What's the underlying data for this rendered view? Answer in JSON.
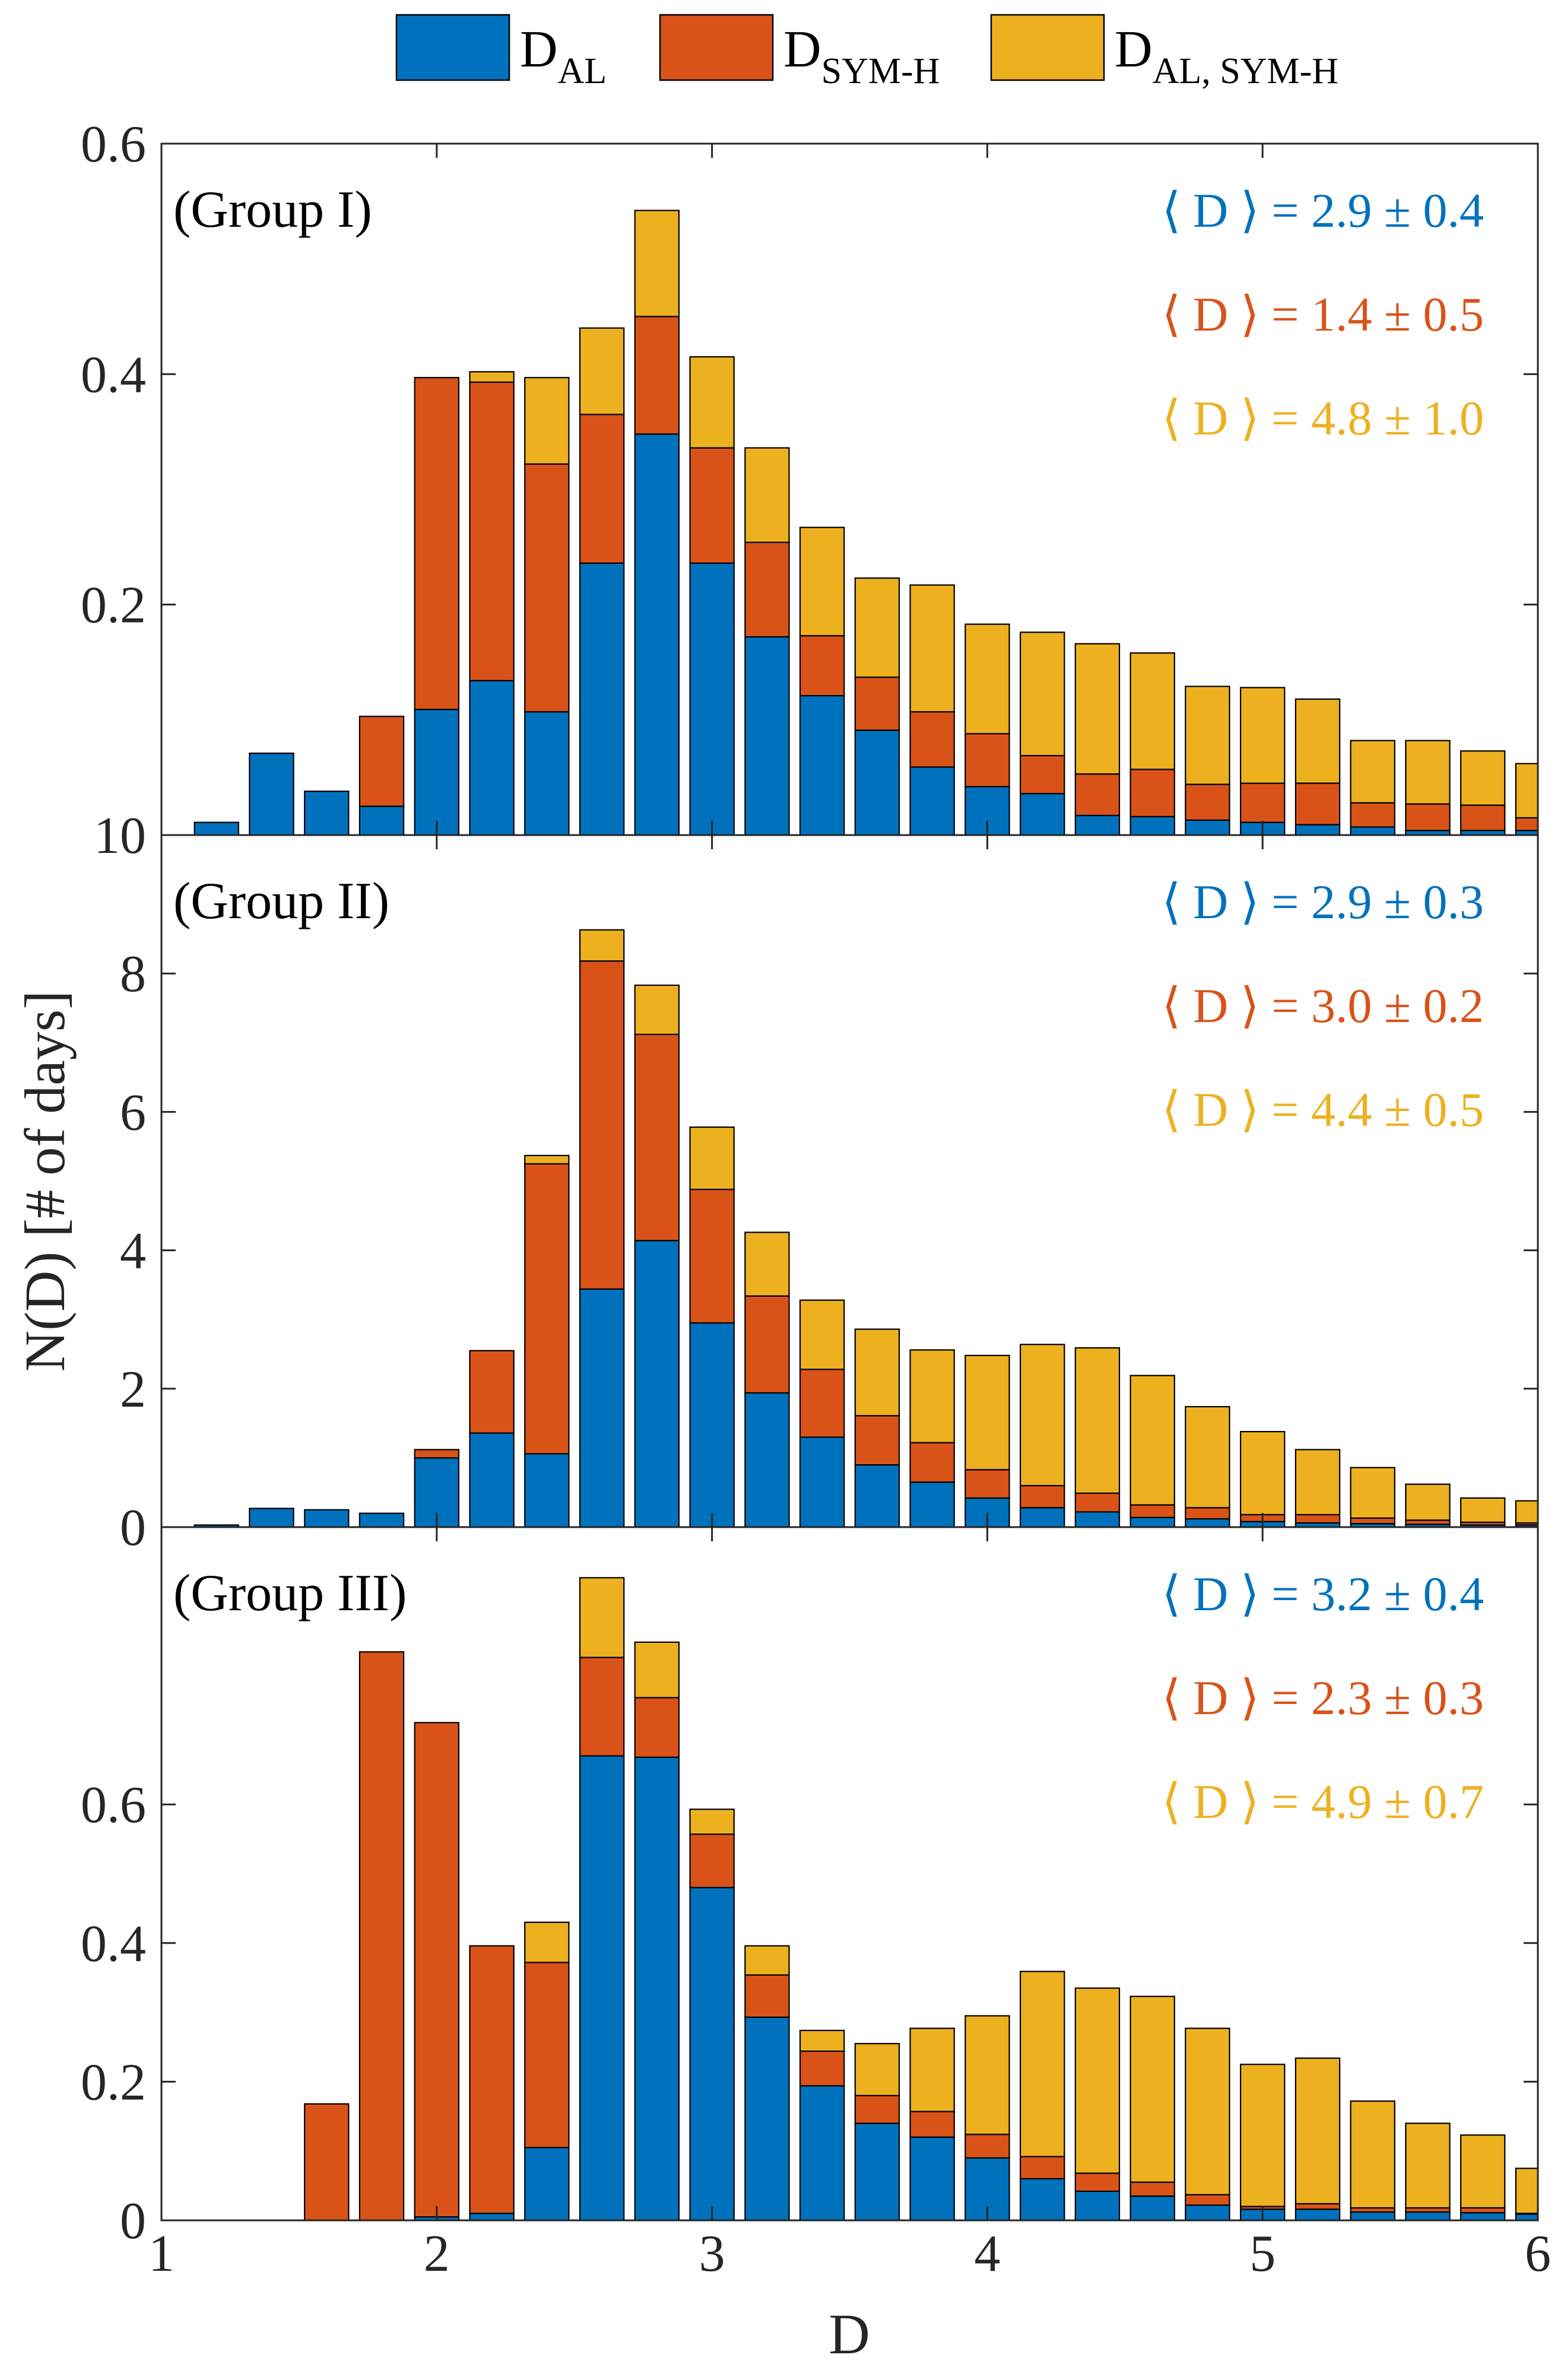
{
  "chart_data": {
    "type": "bar",
    "stacked": true,
    "xlabel": "D",
    "ylabel": "N(D) [# of days]",
    "xlim": [
      1,
      6
    ],
    "xticks": [
      "1",
      "2",
      "3",
      "4",
      "5",
      "6"
    ],
    "legend_position": "top",
    "legend": [
      {
        "base": "D",
        "sub": "AL",
        "color": "#0072BD"
      },
      {
        "base": "D",
        "sub": "SYM-H",
        "color": "#D95319"
      },
      {
        "base": "D",
        "sub": "AL, SYM-H",
        "color": "#EDB120"
      }
    ],
    "bin_centers": [
      1.2,
      1.4,
      1.6,
      1.8,
      2.0,
      2.2,
      2.4,
      2.6,
      2.8,
      3.0,
      3.2,
      3.4,
      3.6,
      3.8,
      4.0,
      4.2,
      4.4,
      4.6,
      4.8,
      5.0,
      5.2,
      5.4,
      5.6,
      5.8,
      6.0
    ],
    "panels": [
      {
        "label": "(Group I)",
        "ylim": [
          0,
          0.6
        ],
        "yticks": [
          "0.2",
          "0.4",
          "0.6"
        ],
        "stats": [
          {
            "text": "⟨ D ⟩ = 2.9 ± 0.4",
            "color": "#0072BD"
          },
          {
            "text": "⟨ D ⟩ = 1.4 ± 0.5",
            "color": "#D95319"
          },
          {
            "text": "⟨ D ⟩ = 4.8 ± 1.0",
            "color": "#EDB120"
          }
        ],
        "series": [
          {
            "name": "D_AL",
            "values": [
              0.011,
              0.071,
              0.038,
              0.025,
              0.109,
              0.134,
              0.107,
              0.236,
              0.348,
              0.236,
              0.172,
              0.121,
              0.091,
              0.059,
              0.042,
              0.036,
              0.017,
              0.016,
              0.013,
              0.011,
              0.009,
              0.007,
              0.004,
              0.004,
              0.004
            ]
          },
          {
            "name": "D_SYM-H",
            "values": [
              0,
              0,
              0,
              0.078,
              0.288,
              0.259,
              0.215,
              0.129,
              0.102,
              0.1,
              0.082,
              0.052,
              0.046,
              0.048,
              0.046,
              0.033,
              0.036,
              0.041,
              0.031,
              0.034,
              0.036,
              0.021,
              0.023,
              0.022,
              0.011
            ]
          },
          {
            "name": "D_AL, SYM-H",
            "values": [
              0,
              0,
              0,
              0,
              0,
              0.009,
              0.075,
              0.075,
              0.092,
              0.079,
              0.082,
              0.094,
              0.086,
              0.11,
              0.095,
              0.107,
              0.113,
              0.101,
              0.085,
              0.083,
              0.073,
              0.054,
              0.055,
              0.047,
              0.047
            ]
          }
        ]
      },
      {
        "label": "(Group II)",
        "ylim": [
          0,
          10
        ],
        "yticks": [
          "0",
          "2",
          "4",
          "6",
          "8",
          "10"
        ],
        "stats": [
          {
            "text": "⟨ D ⟩ = 2.9 ± 0.3",
            "color": "#0072BD"
          },
          {
            "text": "⟨ D ⟩ = 3.0 ± 0.2",
            "color": "#D95319"
          },
          {
            "text": "⟨ D ⟩ = 4.4 ± 0.5",
            "color": "#EDB120"
          }
        ],
        "series": [
          {
            "name": "D_AL",
            "values": [
              0.03,
              0.27,
              0.25,
              0.2,
              1.0,
              1.36,
              1.06,
              3.44,
              4.14,
              2.95,
              1.94,
              1.3,
              0.9,
              0.65,
              0.42,
              0.28,
              0.22,
              0.14,
              0.12,
              0.08,
              0.06,
              0.05,
              0.04,
              0.03,
              0.03
            ]
          },
          {
            "name": "D_SYM-H",
            "values": [
              0,
              0,
              0,
              0,
              0.12,
              1.19,
              4.19,
              4.74,
              2.98,
              1.93,
              1.4,
              0.98,
              0.71,
              0.57,
              0.41,
              0.32,
              0.27,
              0.18,
              0.16,
              0.1,
              0.12,
              0.08,
              0.06,
              0.04,
              0.03
            ]
          },
          {
            "name": "D_AL, SYM-H",
            "values": [
              0,
              0,
              0,
              0,
              0,
              0,
              0.12,
              0.45,
              0.71,
              0.9,
              0.92,
              1.0,
              1.25,
              1.34,
              1.65,
              2.04,
              2.1,
              1.87,
              1.46,
              1.2,
              0.94,
              0.73,
              0.52,
              0.35,
              0.32
            ]
          }
        ]
      },
      {
        "label": "(Group III)",
        "ylim": [
          0,
          1.0
        ],
        "yticks": [
          "0",
          "0.2",
          "0.4",
          "0.6"
        ],
        "stats": [
          {
            "text": "⟨ D ⟩ = 3.2 ± 0.4",
            "color": "#0072BD"
          },
          {
            "text": "⟨ D ⟩ = 2.3 ± 0.3",
            "color": "#D95319"
          },
          {
            "text": "⟨ D ⟩ = 4.9 ± 0.7",
            "color": "#EDB120"
          }
        ],
        "series": [
          {
            "name": "D_AL",
            "values": [
              0,
              0,
              0,
              0,
              0.005,
              0.01,
              0.105,
              0.67,
              0.668,
              0.48,
              0.293,
              0.194,
              0.14,
              0.12,
              0.09,
              0.06,
              0.042,
              0.035,
              0.022,
              0.016,
              0.016,
              0.012,
              0.012,
              0.011,
              0.009
            ]
          },
          {
            "name": "D_SYM-H",
            "values": [
              0,
              0,
              0.168,
              0.82,
              0.713,
              0.386,
              0.267,
              0.142,
              0.086,
              0.077,
              0.061,
              0.05,
              0.04,
              0.037,
              0.034,
              0.032,
              0.026,
              0.02,
              0.015,
              0.004,
              0.008,
              0.006,
              0.006,
              0.007,
              0.001
            ]
          },
          {
            "name": "D_AL, SYM-H",
            "values": [
              0,
              0,
              0,
              0,
              0,
              0,
              0.058,
              0.115,
              0.08,
              0.036,
              0.042,
              0.03,
              0.075,
              0.12,
              0.171,
              0.267,
              0.267,
              0.268,
              0.24,
              0.205,
              0.21,
              0.154,
              0.122,
              0.105,
              0.065
            ]
          }
        ]
      }
    ]
  }
}
